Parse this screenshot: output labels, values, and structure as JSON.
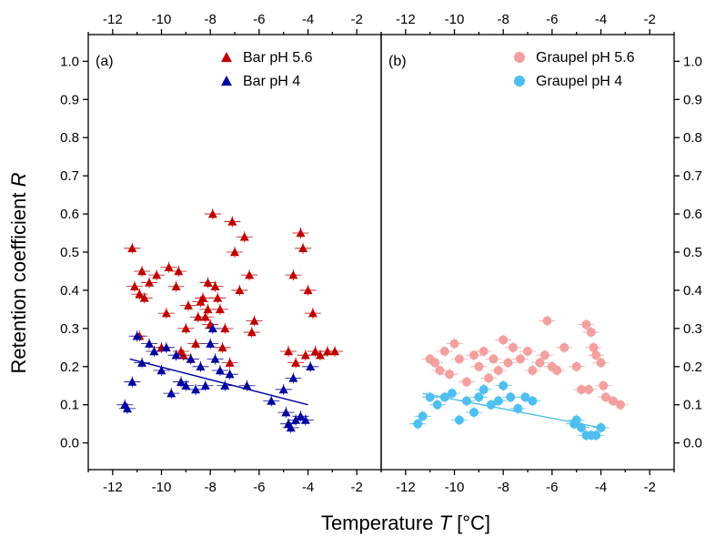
{
  "chart_data": [
    {
      "panel_label": "(a)",
      "type": "scatter",
      "xlim": [
        -13,
        -1
      ],
      "ylim": [
        -0.07,
        1.07
      ],
      "xticks": [
        -12,
        -10,
        -8,
        -6,
        -4,
        -2
      ],
      "yticks": [
        0.0,
        0.1,
        0.2,
        0.3,
        0.4,
        0.5,
        0.6,
        0.7,
        0.8,
        0.9,
        1.0
      ],
      "grid": false,
      "legend_position": "top-right",
      "series": [
        {
          "name": "Bar pH 5.6",
          "marker": "triangle",
          "color": "#c00000",
          "points": [
            [
              -11.2,
              0.51
            ],
            [
              -11.1,
              0.41
            ],
            [
              -10.9,
              0.28
            ],
            [
              -10.8,
              0.45
            ],
            [
              -10.9,
              0.39
            ],
            [
              -10.7,
              0.38
            ],
            [
              -10.5,
              0.42
            ],
            [
              -10.2,
              0.44
            ],
            [
              -10.0,
              0.25
            ],
            [
              -9.8,
              0.34
            ],
            [
              -9.7,
              0.46
            ],
            [
              -9.4,
              0.41
            ],
            [
              -9.3,
              0.45
            ],
            [
              -9.2,
              0.24
            ],
            [
              -9.1,
              0.23
            ],
            [
              -9.0,
              0.3
            ],
            [
              -8.9,
              0.36
            ],
            [
              -8.8,
              0.22
            ],
            [
              -8.6,
              0.26
            ],
            [
              -8.5,
              0.33
            ],
            [
              -8.4,
              0.37
            ],
            [
              -8.3,
              0.38
            ],
            [
              -8.2,
              0.33
            ],
            [
              -8.1,
              0.35
            ],
            [
              -8.1,
              0.42
            ],
            [
              -8.0,
              0.31
            ],
            [
              -7.9,
              0.6
            ],
            [
              -7.8,
              0.41
            ],
            [
              -7.7,
              0.38
            ],
            [
              -7.6,
              0.35
            ],
            [
              -7.5,
              0.25
            ],
            [
              -7.4,
              0.3
            ],
            [
              -7.2,
              0.21
            ],
            [
              -7.1,
              0.58
            ],
            [
              -7.0,
              0.5
            ],
            [
              -6.8,
              0.4
            ],
            [
              -6.6,
              0.54
            ],
            [
              -6.4,
              0.44
            ],
            [
              -6.3,
              0.29
            ],
            [
              -6.2,
              0.32
            ],
            [
              -4.8,
              0.24
            ],
            [
              -4.6,
              0.44
            ],
            [
              -4.5,
              0.21
            ],
            [
              -4.3,
              0.55
            ],
            [
              -4.2,
              0.51
            ],
            [
              -4.1,
              0.23
            ],
            [
              -4.0,
              0.4
            ],
            [
              -3.8,
              0.34
            ],
            [
              -3.7,
              0.24
            ],
            [
              -3.5,
              0.23
            ],
            [
              -3.2,
              0.24
            ],
            [
              -2.9,
              0.24
            ]
          ]
        },
        {
          "name": "Bar pH 4",
          "marker": "triangle",
          "color": "#0000a0",
          "points": [
            [
              -11.5,
              0.1
            ],
            [
              -11.4,
              0.09
            ],
            [
              -11.2,
              0.16
            ],
            [
              -11.0,
              0.28
            ],
            [
              -10.8,
              0.21
            ],
            [
              -10.5,
              0.26
            ],
            [
              -10.3,
              0.24
            ],
            [
              -10.0,
              0.19
            ],
            [
              -9.8,
              0.25
            ],
            [
              -9.6,
              0.13
            ],
            [
              -9.4,
              0.23
            ],
            [
              -9.2,
              0.16
            ],
            [
              -9.0,
              0.15
            ],
            [
              -8.8,
              0.22
            ],
            [
              -8.6,
              0.14
            ],
            [
              -8.4,
              0.2
            ],
            [
              -8.2,
              0.15
            ],
            [
              -8.0,
              0.26
            ],
            [
              -7.9,
              0.3
            ],
            [
              -7.8,
              0.22
            ],
            [
              -7.6,
              0.19
            ],
            [
              -7.4,
              0.15
            ],
            [
              -7.2,
              0.18
            ],
            [
              -6.5,
              0.15
            ],
            [
              -5.5,
              0.11
            ],
            [
              -5.0,
              0.14
            ],
            [
              -4.9,
              0.08
            ],
            [
              -4.8,
              0.05
            ],
            [
              -4.7,
              0.04
            ],
            [
              -4.6,
              0.17
            ],
            [
              -4.5,
              0.06
            ],
            [
              -4.3,
              0.07
            ],
            [
              -4.1,
              0.06
            ],
            [
              -3.9,
              0.2
            ]
          ]
        }
      ],
      "fit_lines": [
        {
          "series": "Bar pH 4",
          "x": [
            -11.3,
            -4.0
          ],
          "y": [
            0.22,
            0.1
          ]
        }
      ]
    },
    {
      "panel_label": "(b)",
      "type": "scatter",
      "xlim": [
        -13,
        -1
      ],
      "ylim": [
        -0.07,
        1.07
      ],
      "xticks": [
        -12,
        -10,
        -8,
        -6,
        -4,
        -2
      ],
      "yticks": [
        0.0,
        0.1,
        0.2,
        0.3,
        0.4,
        0.5,
        0.6,
        0.7,
        0.8,
        0.9,
        1.0
      ],
      "grid": false,
      "legend_position": "top-right",
      "series": [
        {
          "name": "Graupel pH 5.6",
          "marker": "circle",
          "color": "#f4a0a0",
          "points": [
            [
              -11.0,
              0.22
            ],
            [
              -10.8,
              0.21
            ],
            [
              -10.6,
              0.19
            ],
            [
              -10.4,
              0.24
            ],
            [
              -10.2,
              0.18
            ],
            [
              -10.0,
              0.26
            ],
            [
              -9.8,
              0.22
            ],
            [
              -9.5,
              0.16
            ],
            [
              -9.2,
              0.23
            ],
            [
              -9.0,
              0.2
            ],
            [
              -8.8,
              0.24
            ],
            [
              -8.6,
              0.17
            ],
            [
              -8.4,
              0.22
            ],
            [
              -8.2,
              0.19
            ],
            [
              -8.0,
              0.27
            ],
            [
              -7.8,
              0.21
            ],
            [
              -7.6,
              0.25
            ],
            [
              -7.3,
              0.22
            ],
            [
              -7.0,
              0.24
            ],
            [
              -6.8,
              0.19
            ],
            [
              -6.5,
              0.21
            ],
            [
              -6.3,
              0.23
            ],
            [
              -6.0,
              0.2
            ],
            [
              -5.8,
              0.19
            ],
            [
              -5.5,
              0.25
            ],
            [
              -5.0,
              0.2
            ],
            [
              -4.8,
              0.14
            ],
            [
              -4.6,
              0.31
            ],
            [
              -4.4,
              0.29
            ],
            [
              -4.3,
              0.25
            ],
            [
              -4.2,
              0.23
            ],
            [
              -4.0,
              0.21
            ],
            [
              -3.9,
              0.15
            ],
            [
              -3.8,
              0.12
            ],
            [
              -3.5,
              0.11
            ],
            [
              -3.2,
              0.1
            ],
            [
              -6.2,
              0.32
            ],
            [
              -4.5,
              0.14
            ]
          ]
        },
        {
          "name": "Graupel pH 4",
          "marker": "circle",
          "color": "#4fbfef",
          "points": [
            [
              -11.5,
              0.05
            ],
            [
              -11.3,
              0.07
            ],
            [
              -11.0,
              0.12
            ],
            [
              -10.7,
              0.1
            ],
            [
              -10.4,
              0.12
            ],
            [
              -10.1,
              0.13
            ],
            [
              -9.8,
              0.06
            ],
            [
              -9.5,
              0.11
            ],
            [
              -9.2,
              0.08
            ],
            [
              -9.0,
              0.12
            ],
            [
              -8.8,
              0.14
            ],
            [
              -8.5,
              0.1
            ],
            [
              -8.2,
              0.11
            ],
            [
              -8.0,
              0.15
            ],
            [
              -7.7,
              0.12
            ],
            [
              -7.4,
              0.09
            ],
            [
              -7.1,
              0.12
            ],
            [
              -6.8,
              0.11
            ],
            [
              -5.1,
              0.05
            ],
            [
              -5.0,
              0.06
            ],
            [
              -4.8,
              0.04
            ],
            [
              -4.6,
              0.02
            ],
            [
              -4.4,
              0.02
            ],
            [
              -4.2,
              0.02
            ],
            [
              -4.0,
              0.04
            ]
          ]
        }
      ],
      "fit_lines": [
        {
          "series": "Graupel pH 4",
          "x": [
            -11.3,
            -4.0
          ],
          "y": [
            0.13,
            0.04
          ]
        }
      ]
    }
  ],
  "figure": {
    "ylabel_prefix": "Retention coefficient ",
    "ylabel_var": "R",
    "xlabel_prefix": "Temperature ",
    "xlabel_var": "T",
    "xlabel_unit": " [°C]"
  }
}
